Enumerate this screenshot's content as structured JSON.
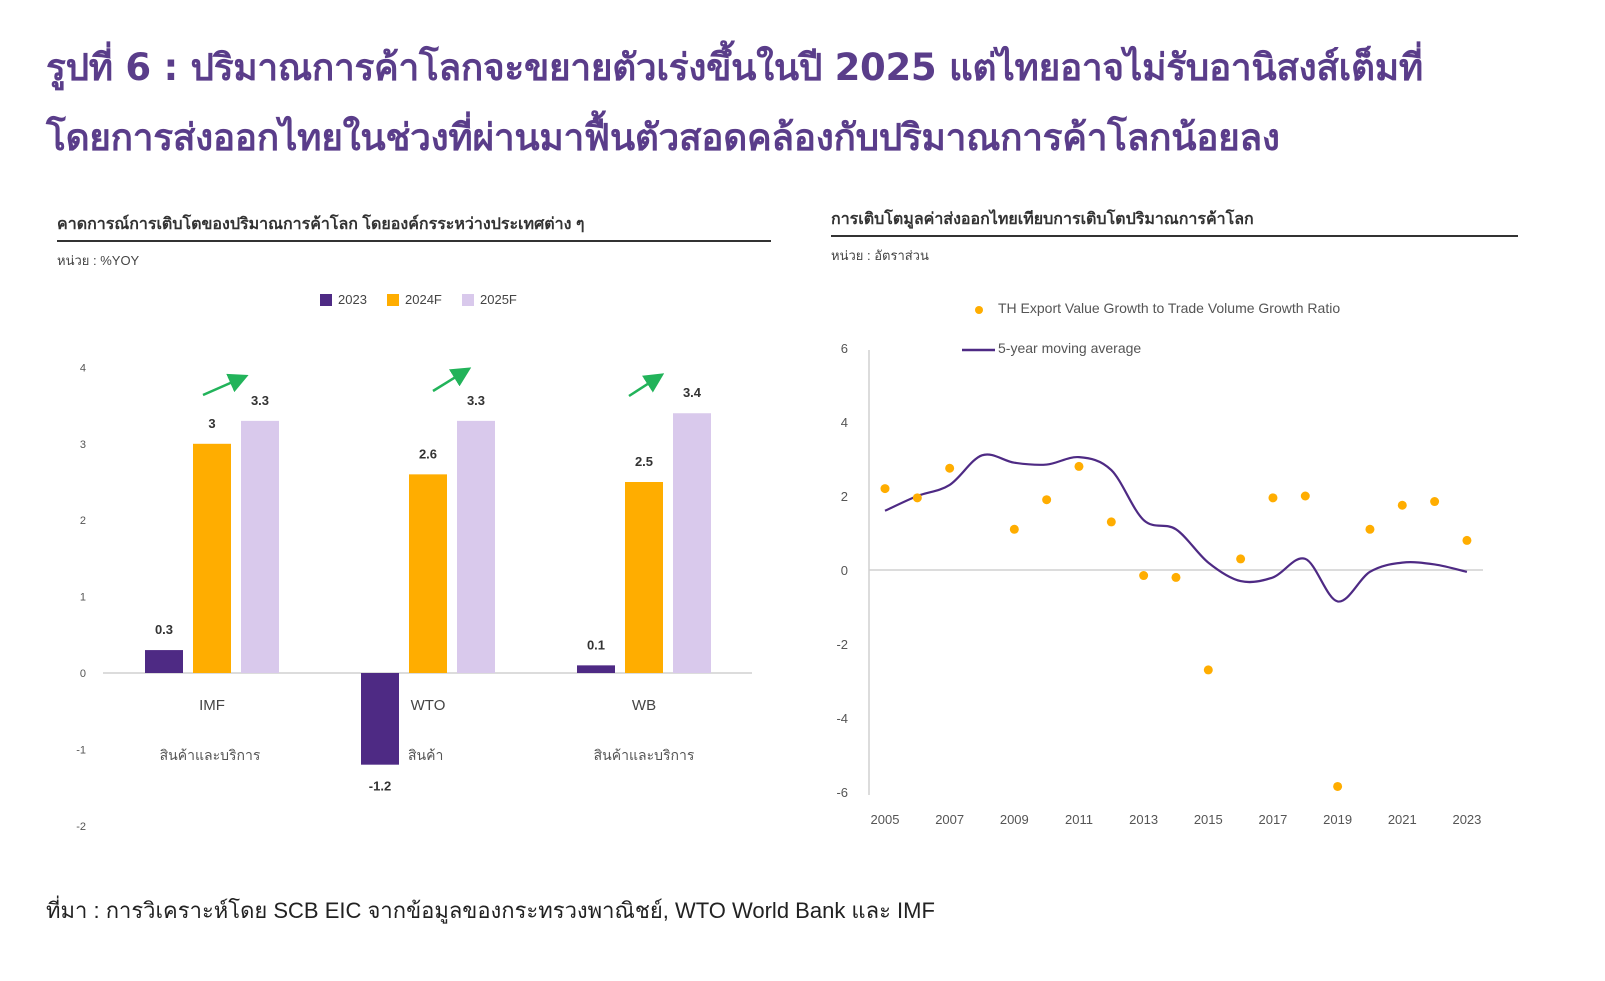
{
  "title": {
    "line1": "รูปที่ 6 : ปริมาณการค้าโลกจะขยายตัวเร่งขึ้นในปี 2025 แต่ไทยอาจไม่รับอานิสงส์เต็มที่",
    "line2": "โดยการส่งออกไทยในช่วงที่ผ่านมาฟื้นตัวสอดคล้องกับปริมาณการค้าโลกน้อยลง"
  },
  "left_panel": {
    "title": "คาดการณ์การเติบโตของปริมาณการค้าโลก โดยองค์กรระหว่างประเทศต่าง ๆ",
    "unit": "หน่วย : %YOY"
  },
  "right_panel": {
    "title": "การเติบโตมูลค่าส่งออกไทยเทียบการเติบโตปริมาณการค้าโลก",
    "unit": "หน่วย : อัตราส่วน"
  },
  "source": "ที่มา : การวิเคราะห์โดย SCB EIC จากข้อมูลของกระทรวงพาณิชย์, WTO World Bank และ IMF",
  "colors": {
    "title": "#5a3d8a",
    "s2023": "#4e2a84",
    "s2024": "#ffad00",
    "s2025": "#d9c9ec",
    "arrow": "#22b35a",
    "dots": "#ffad00",
    "line": "#4e2a84"
  },
  "chart_data": [
    {
      "type": "bar",
      "title": "คาดการณ์การเติบโตของปริมาณการค้าโลก โดยองค์กรระหว่างประเทศต่าง ๆ",
      "ylabel": "%YOY",
      "ylim": [
        -2,
        4
      ],
      "yticks": [
        -2,
        -1,
        0,
        1,
        2,
        3,
        4
      ],
      "categories": [
        "IMF",
        "WTO",
        "WB"
      ],
      "subcategories": [
        "สินค้าและบริการ",
        "สินค้า",
        "สินค้าและบริการ"
      ],
      "series": [
        {
          "name": "2023",
          "values": [
            0.3,
            -1.2,
            0.1
          ]
        },
        {
          "name": "2024F",
          "values": [
            3,
            2.6,
            2.5
          ]
        },
        {
          "name": "2025F",
          "values": [
            3.3,
            3.3,
            3.4
          ]
        }
      ],
      "legend": "top-center",
      "grid": false
    },
    {
      "type": "scatter",
      "title": "การเติบโตมูลค่าส่งออกไทยเทียบการเติบโตปริมาณการค้าโลก",
      "ylabel": "อัตราส่วน",
      "xlim": [
        2005,
        2023
      ],
      "ylim": [
        -6,
        6
      ],
      "xticks": [
        2005,
        2007,
        2009,
        2011,
        2013,
        2015,
        2017,
        2019,
        2021,
        2023
      ],
      "yticks": [
        -6,
        -4,
        -2,
        0,
        2,
        4,
        6
      ],
      "series": [
        {
          "name": "TH Export Value Growth to Trade Volume Growth Ratio",
          "kind": "scatter",
          "x": [
            2005,
            2006,
            2007,
            2009,
            2010,
            2011,
            2012,
            2013,
            2014,
            2015,
            2016,
            2017,
            2018,
            2019,
            2020,
            2021,
            2022,
            2023
          ],
          "y": [
            2.2,
            1.95,
            2.75,
            1.1,
            1.9,
            2.8,
            1.3,
            -0.15,
            -0.2,
            -2.7,
            0.3,
            1.95,
            2.0,
            -5.85,
            1.1,
            1.75,
            1.85,
            0.8
          ]
        },
        {
          "name": "5-year moving average",
          "kind": "line",
          "x": [
            2005,
            2006,
            2007,
            2008,
            2009,
            2010,
            2011,
            2012,
            2013,
            2014,
            2015,
            2016,
            2017,
            2018,
            2019,
            2020,
            2021,
            2022,
            2023
          ],
          "y": [
            1.6,
            2.0,
            2.3,
            3.1,
            2.9,
            2.85,
            3.05,
            2.7,
            1.35,
            1.1,
            0.2,
            -0.3,
            -0.2,
            0.3,
            -0.85,
            -0.05,
            0.2,
            0.15,
            -0.05
          ]
        }
      ],
      "legend": "top-left",
      "grid": false
    }
  ]
}
